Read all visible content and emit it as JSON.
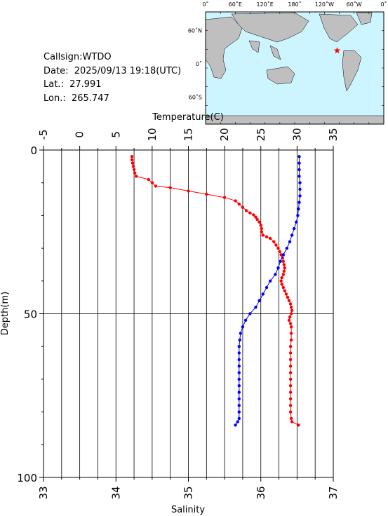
{
  "info": {
    "callsign": "Callsign:WTDO",
    "date": "Date:  2025/09/13 19:18(UTC)",
    "lat": "Lat.:  27.991",
    "lon": "Lon.:  265.747"
  },
  "map": {
    "lon_labels": [
      "0˚",
      "60˚E",
      "120˚E",
      "180˚",
      "120˚W",
      "60˚W",
      "0˚"
    ],
    "lat_labels": [
      "60˚N",
      "0˚",
      "60˚S"
    ],
    "marker_lon": 265.747,
    "marker_lat": 27.991,
    "ocean_color": "#ccf5ff",
    "land_color": "#bfbfbf",
    "marker_color": "#ff0000"
  },
  "chart_data": {
    "type": "line",
    "top_axis_title": "Temperature(C)",
    "bottom_axis_title": "Salinity",
    "left_axis_title": "Depth(m)",
    "temperature_ticks": [
      "-5",
      "0",
      "5",
      "10",
      "15",
      "20",
      "25",
      "30",
      "35"
    ],
    "salinity_ticks": [
      "33",
      "34",
      "35",
      "36",
      "37"
    ],
    "depth_ticks": [
      "0",
      "50",
      "100"
    ],
    "temperature_range": [
      -5,
      35
    ],
    "salinity_range": [
      33,
      37
    ],
    "depth_range": [
      0,
      100
    ],
    "temperature_color": "#ff0000",
    "salinity_color": "#0000ff",
    "temperature_profile": [
      [
        7.2,
        2
      ],
      [
        7.2,
        3
      ],
      [
        7.3,
        4
      ],
      [
        7.4,
        5
      ],
      [
        7.5,
        6
      ],
      [
        7.6,
        7
      ],
      [
        7.8,
        8
      ],
      [
        9.5,
        9
      ],
      [
        10.0,
        10
      ],
      [
        10.5,
        11
      ],
      [
        12.5,
        11.5
      ],
      [
        15,
        12.5
      ],
      [
        17.5,
        13.5
      ],
      [
        20,
        14.5
      ],
      [
        21.5,
        15.5
      ],
      [
        22,
        16.5
      ],
      [
        22.5,
        17.5
      ],
      [
        23,
        18.5
      ],
      [
        23.5,
        19.2
      ],
      [
        24,
        19.8
      ],
      [
        24.3,
        20.5
      ],
      [
        24.5,
        21.2
      ],
      [
        24.8,
        22
      ],
      [
        25,
        23
      ],
      [
        25.1,
        24
      ],
      [
        25.1,
        25
      ],
      [
        25.3,
        26
      ],
      [
        25.8,
        26.5
      ],
      [
        26.3,
        27
      ],
      [
        26.8,
        28
      ],
      [
        27.1,
        29
      ],
      [
        27.4,
        30
      ],
      [
        27.6,
        31
      ],
      [
        27.8,
        32
      ],
      [
        28,
        33
      ],
      [
        28.1,
        34
      ],
      [
        28.2,
        35
      ],
      [
        28.3,
        36
      ],
      [
        28.2,
        37
      ],
      [
        28.1,
        38
      ],
      [
        27.9,
        39
      ],
      [
        27.8,
        40
      ],
      [
        27.9,
        41
      ],
      [
        28.1,
        42
      ],
      [
        28.3,
        43
      ],
      [
        28.5,
        44
      ],
      [
        28.7,
        45
      ],
      [
        28.9,
        46
      ],
      [
        29.1,
        47
      ],
      [
        29.2,
        48
      ],
      [
        29.3,
        49
      ],
      [
        29.2,
        50
      ],
      [
        29.0,
        51
      ],
      [
        28.9,
        52
      ],
      [
        29.1,
        53
      ],
      [
        29.2,
        54
      ],
      [
        29.2,
        56
      ],
      [
        29.2,
        58
      ],
      [
        29.1,
        60
      ],
      [
        29.1,
        62
      ],
      [
        29.1,
        64
      ],
      [
        29.1,
        66
      ],
      [
        29.1,
        68
      ],
      [
        29.1,
        70
      ],
      [
        29.1,
        72
      ],
      [
        29.1,
        74
      ],
      [
        29.1,
        76
      ],
      [
        29.1,
        78
      ],
      [
        29.1,
        80
      ],
      [
        29.2,
        82
      ],
      [
        29.3,
        83
      ],
      [
        30.2,
        84
      ]
    ],
    "salinity_profile": [
      [
        36.53,
        2
      ],
      [
        36.53,
        4
      ],
      [
        36.53,
        6
      ],
      [
        36.53,
        8
      ],
      [
        36.54,
        10
      ],
      [
        36.54,
        12
      ],
      [
        36.54,
        14
      ],
      [
        36.53,
        16
      ],
      [
        36.52,
        18
      ],
      [
        36.51,
        20
      ],
      [
        36.49,
        22
      ],
      [
        36.46,
        24
      ],
      [
        36.43,
        26
      ],
      [
        36.4,
        28
      ],
      [
        36.36,
        30
      ],
      [
        36.31,
        32
      ],
      [
        36.27,
        34
      ],
      [
        36.24,
        36
      ],
      [
        36.2,
        38
      ],
      [
        36.13,
        40
      ],
      [
        36.08,
        42
      ],
      [
        36.03,
        44
      ],
      [
        35.98,
        46
      ],
      [
        35.93,
        48
      ],
      [
        35.85,
        50
      ],
      [
        35.79,
        52
      ],
      [
        35.75,
        54
      ],
      [
        35.72,
        56
      ],
      [
        35.71,
        58
      ],
      [
        35.7,
        60
      ],
      [
        35.7,
        62
      ],
      [
        35.7,
        64
      ],
      [
        35.7,
        66
      ],
      [
        35.7,
        68
      ],
      [
        35.7,
        70
      ],
      [
        35.7,
        72
      ],
      [
        35.7,
        74
      ],
      [
        35.7,
        76
      ],
      [
        35.7,
        78
      ],
      [
        35.7,
        80
      ],
      [
        35.7,
        82
      ],
      [
        35.68,
        83
      ],
      [
        35.65,
        84
      ]
    ]
  }
}
